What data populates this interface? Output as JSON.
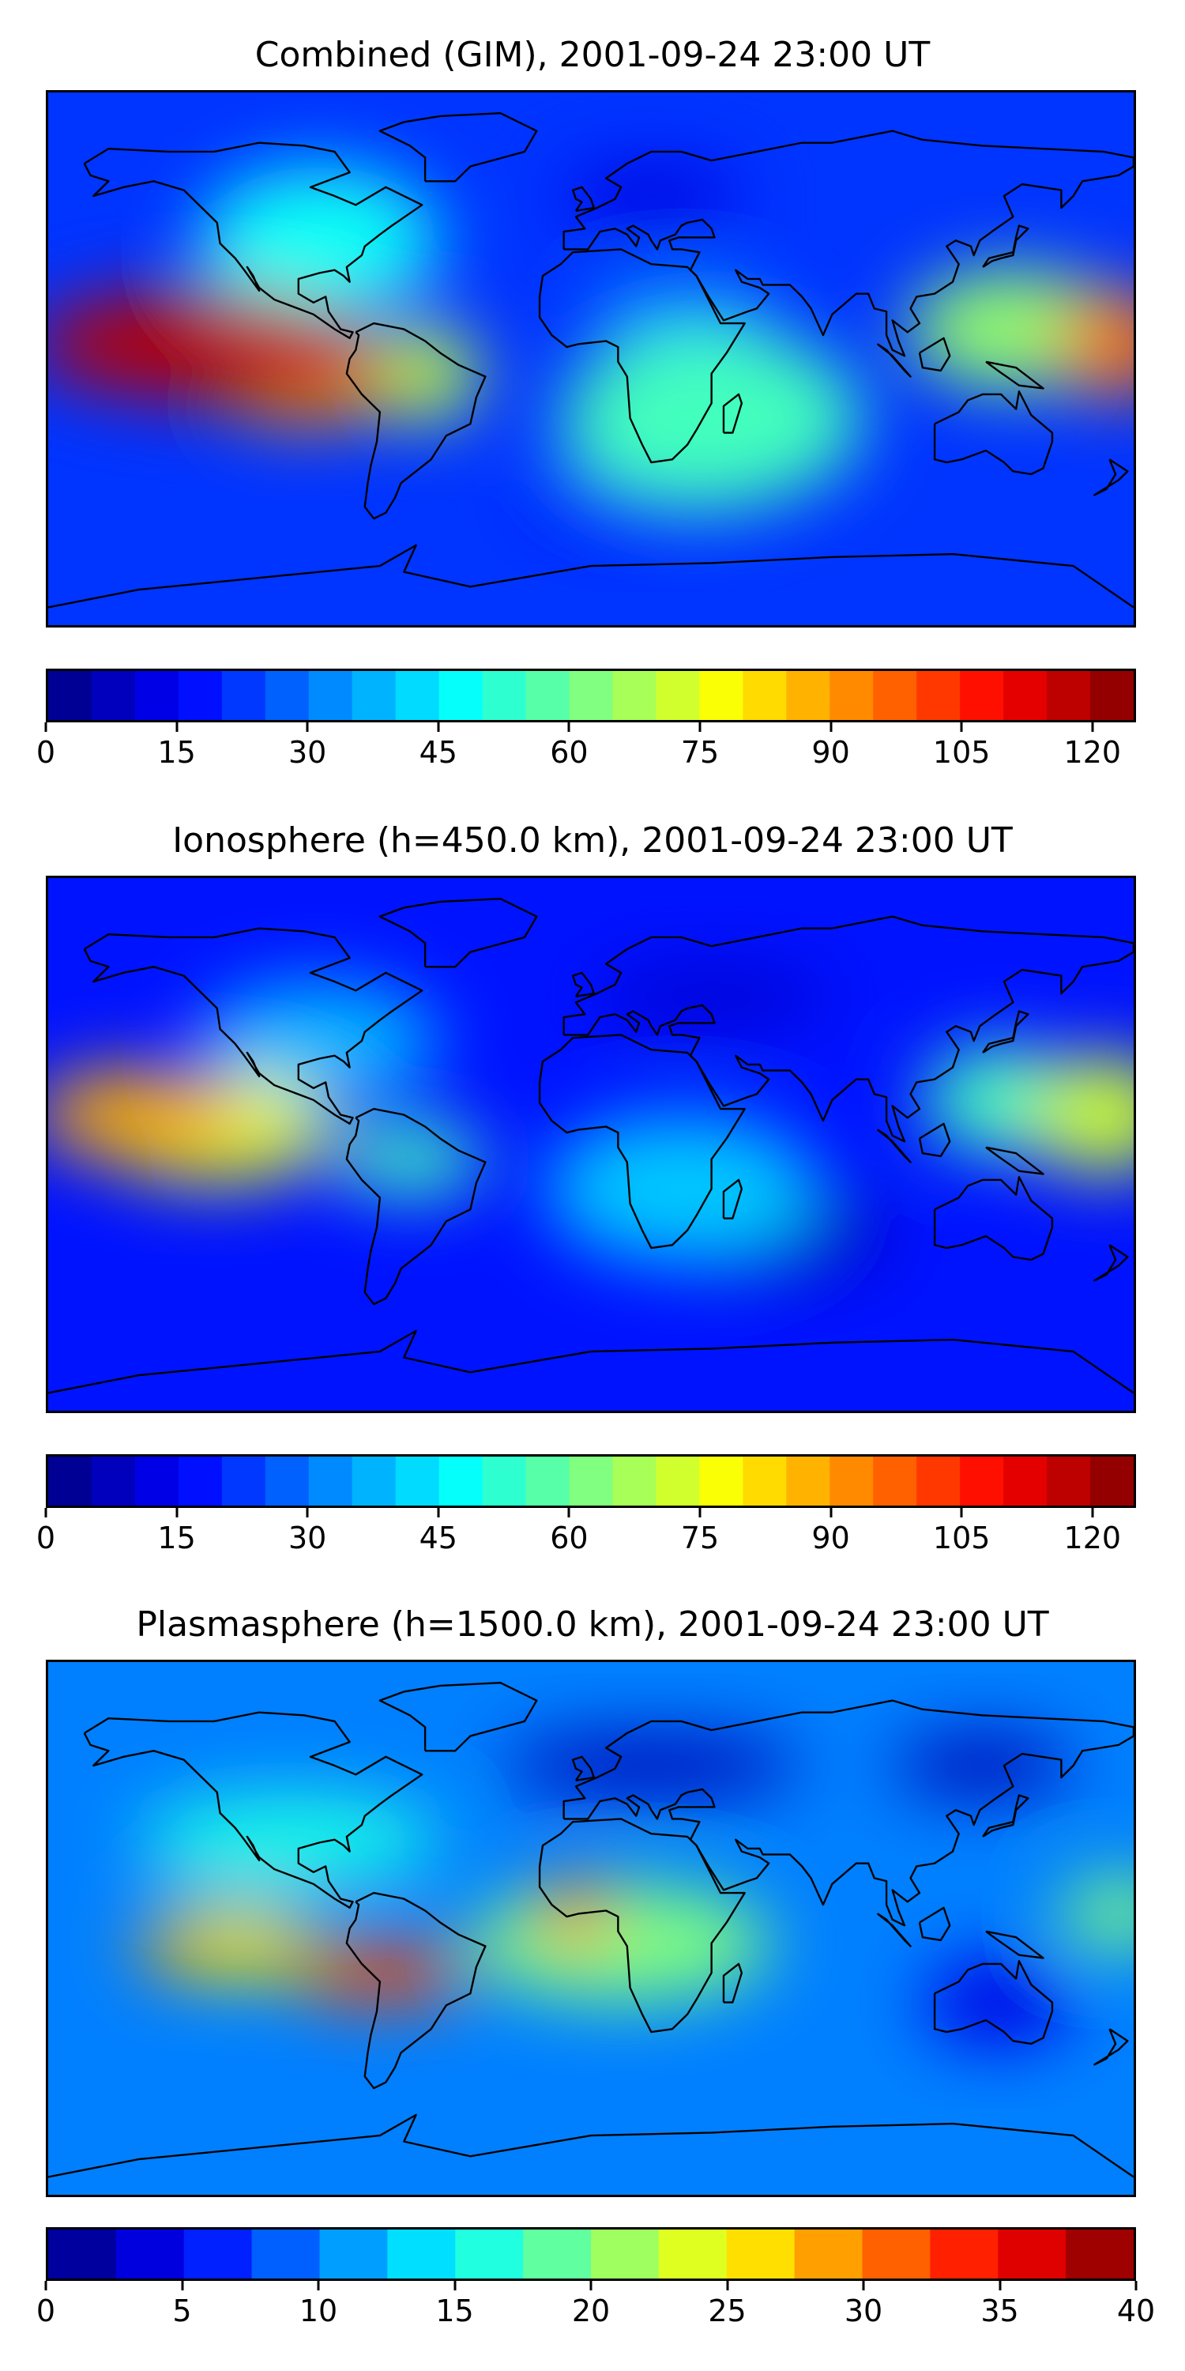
{
  "panels": [
    {
      "title": "Combined (GIM), 2001-09-24 23:00 UT",
      "colorbar": {
        "ticks": [
          "0",
          "15",
          "30",
          "45",
          "60",
          "75",
          "90",
          "105",
          "120"
        ],
        "min": 0,
        "max": 125,
        "levels": 25
      },
      "blobs": [
        {
          "lon": -130,
          "lat": 5,
          "rx": 55,
          "ry": 18,
          "v": 118
        },
        {
          "lon": -115,
          "lat": 0,
          "rx": 45,
          "ry": 15,
          "v": 100
        },
        {
          "lon": -95,
          "lat": -8,
          "rx": 30,
          "ry": 14,
          "v": 90
        },
        {
          "lon": -55,
          "lat": -5,
          "rx": 18,
          "ry": 16,
          "v": 70
        },
        {
          "lon": -45,
          "lat": -8,
          "rx": 6,
          "ry": 5,
          "v": 40
        },
        {
          "lon": 175,
          "lat": 5,
          "rx": 20,
          "ry": 18,
          "v": 95
        },
        {
          "lon": 140,
          "lat": 10,
          "rx": 35,
          "ry": 20,
          "v": 65
        },
        {
          "lon": -90,
          "lat": 40,
          "rx": 40,
          "ry": 25,
          "v": 48
        },
        {
          "lon": 40,
          "lat": -20,
          "rx": 50,
          "ry": 30,
          "v": 55
        },
        {
          "lon": 30,
          "lat": 15,
          "rx": 30,
          "ry": 10,
          "v": 35
        },
        {
          "lon": 20,
          "lat": -45,
          "rx": 40,
          "ry": 10,
          "v": 15
        },
        {
          "lon": 20,
          "lat": 55,
          "rx": 30,
          "ry": 10,
          "v": 12
        }
      ],
      "background": 22
    },
    {
      "title": "Ionosphere  (h=450.0 km), 2001-09-24 23:00 UT",
      "colorbar": {
        "ticks": [
          "0",
          "15",
          "30",
          "45",
          "60",
          "75",
          "90",
          "105",
          "120"
        ],
        "min": 0,
        "max": 125,
        "levels": 25
      },
      "blobs": [
        {
          "lon": -150,
          "lat": 10,
          "rx": 35,
          "ry": 15,
          "v": 88
        },
        {
          "lon": -125,
          "lat": 5,
          "rx": 40,
          "ry": 18,
          "v": 75
        },
        {
          "lon": -60,
          "lat": -5,
          "rx": 25,
          "ry": 12,
          "v": 55
        },
        {
          "lon": -48,
          "lat": -8,
          "rx": 7,
          "ry": 6,
          "v": 10
        },
        {
          "lon": 170,
          "lat": 10,
          "rx": 25,
          "ry": 20,
          "v": 72
        },
        {
          "lon": 135,
          "lat": 15,
          "rx": 25,
          "ry": 18,
          "v": 55
        },
        {
          "lon": -90,
          "lat": 35,
          "rx": 40,
          "ry": 20,
          "v": 38
        },
        {
          "lon": 30,
          "lat": -15,
          "rx": 45,
          "ry": 25,
          "v": 40
        },
        {
          "lon": 60,
          "lat": -30,
          "rx": 40,
          "ry": 15,
          "v": 8
        },
        {
          "lon": 40,
          "lat": 50,
          "rx": 40,
          "ry": 10,
          "v": 10
        }
      ],
      "background": 18
    },
    {
      "title": "Plasmasphere (h=1500.0 km), 2001-09-24 23:00 UT",
      "colorbar": {
        "ticks": [
          "0",
          "5",
          "10",
          "15",
          "20",
          "25",
          "30",
          "35",
          "40"
        ],
        "min": 0,
        "max": 40,
        "levels": 16
      },
      "blobs": [
        {
          "lon": -70,
          "lat": -15,
          "rx": 30,
          "ry": 10,
          "v": 32
        },
        {
          "lon": -120,
          "lat": -5,
          "rx": 30,
          "ry": 12,
          "v": 26
        },
        {
          "lon": -140,
          "lat": -8,
          "rx": 10,
          "ry": 6,
          "v": 30
        },
        {
          "lon": -5,
          "lat": 5,
          "rx": 12,
          "ry": 12,
          "v": 30
        },
        {
          "lon": 10,
          "lat": -5,
          "rx": 50,
          "ry": 20,
          "v": 20
        },
        {
          "lon": 30,
          "lat": 0,
          "rx": 8,
          "ry": 6,
          "v": 10
        },
        {
          "lon": 135,
          "lat": -25,
          "rx": 25,
          "ry": 15,
          "v": 4
        },
        {
          "lon": 175,
          "lat": 5,
          "rx": 20,
          "ry": 12,
          "v": 20
        },
        {
          "lon": 20,
          "lat": 55,
          "rx": 50,
          "ry": 10,
          "v": 2
        },
        {
          "lon": 130,
          "lat": 55,
          "rx": 30,
          "ry": 10,
          "v": 2
        },
        {
          "lon": -100,
          "lat": 30,
          "rx": 50,
          "ry": 15,
          "v": 16
        }
      ],
      "background": 10
    }
  ]
}
